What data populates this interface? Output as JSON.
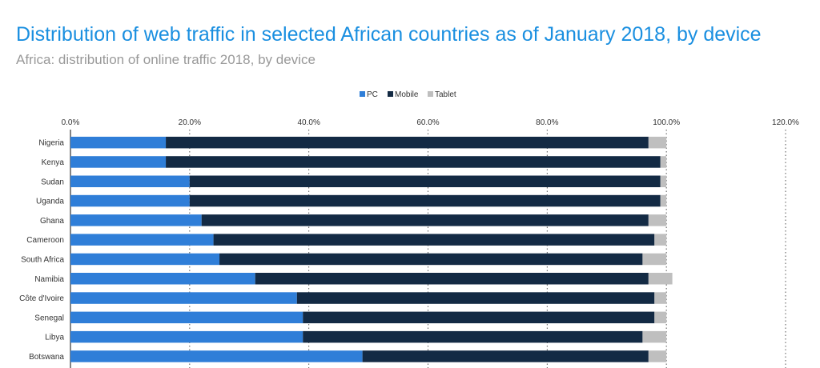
{
  "title": "Distribution of web traffic in selected African countries as of January 2018, by device",
  "subtitle": "Africa: distribution of online traffic 2018, by device",
  "chart_data": {
    "type": "bar",
    "orientation": "horizontal",
    "stacked": true,
    "categories": [
      "Nigeria",
      "Kenya",
      "Sudan",
      "Uganda",
      "Ghana",
      "Cameroon",
      "South Africa",
      "Namibia",
      "Côte d'Ivoire",
      "Senegal",
      "Libya",
      "Botswana"
    ],
    "series": [
      {
        "name": "PC",
        "color": "#2f7ed8",
        "values": [
          16,
          16,
          20,
          20,
          22,
          24,
          25,
          31,
          38,
          39,
          39,
          49
        ]
      },
      {
        "name": "Mobile",
        "color": "#132a44",
        "values": [
          81,
          83,
          79,
          79,
          75,
          74,
          71,
          66,
          60,
          59,
          57,
          48
        ]
      },
      {
        "name": "Tablet",
        "color": "#bfbfbf",
        "values": [
          3,
          1,
          1,
          1,
          3,
          2,
          4,
          4,
          2,
          2,
          4,
          3
        ]
      }
    ],
    "xlim": [
      0,
      120
    ],
    "ticks": [
      "0.0%",
      "20.0%",
      "40.0%",
      "60.0%",
      "80.0%",
      "100.0%",
      "120.0%"
    ],
    "tick_values": [
      0,
      20,
      40,
      60,
      80,
      100,
      120
    ],
    "legend_position": "top-center",
    "grid": "vertical-dotted"
  }
}
